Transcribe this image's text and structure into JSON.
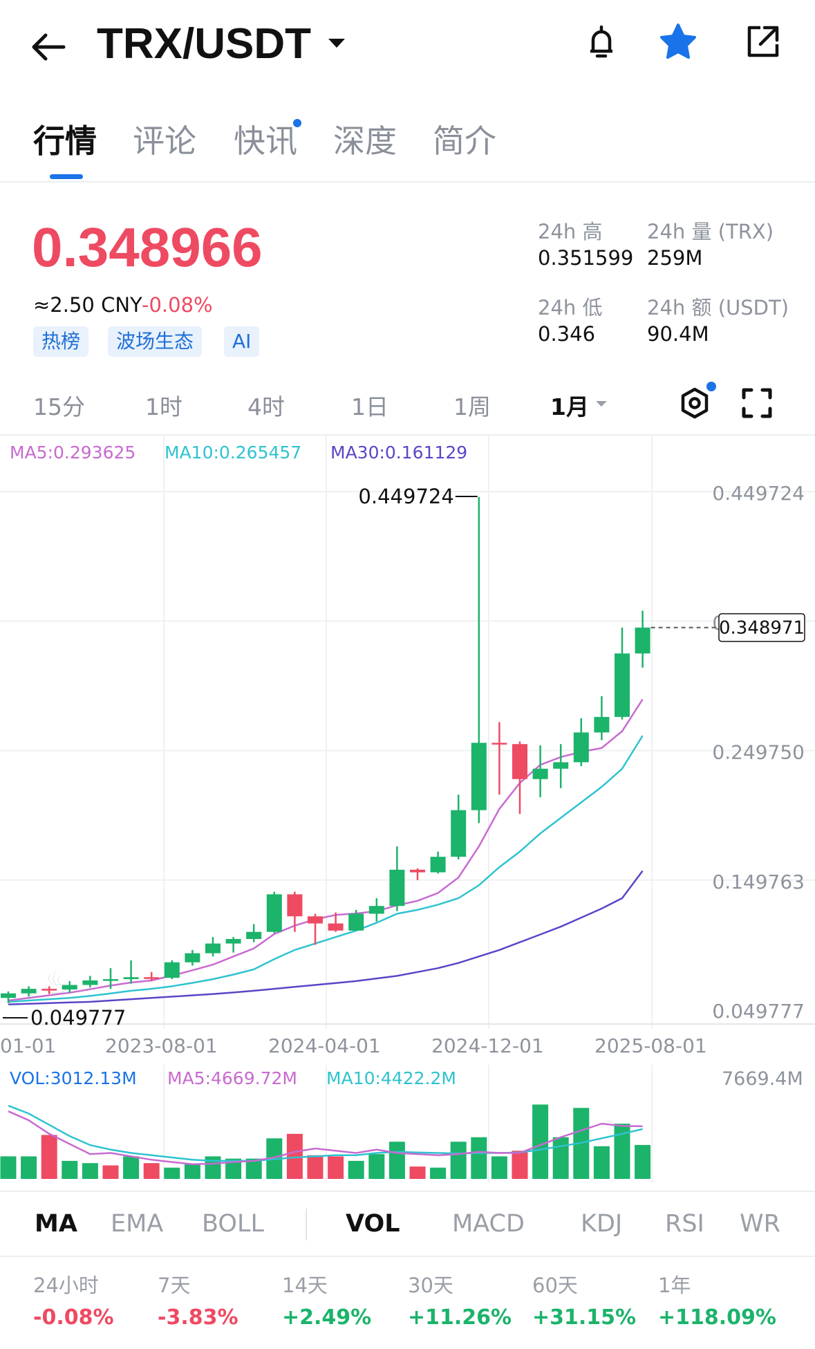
{
  "header": {
    "pair": "TRX/USDT",
    "icons": [
      "back-arrow-icon",
      "dropdown-caret-icon",
      "bell-icon",
      "star-icon",
      "share-icon"
    ]
  },
  "tabs": [
    {
      "label": "行情",
      "active": true
    },
    {
      "label": "评论",
      "active": false
    },
    {
      "label": "快讯",
      "active": false
    },
    {
      "label": "深度",
      "active": false
    },
    {
      "label": "简介",
      "active": false
    }
  ],
  "price": {
    "last": "0.348966",
    "cny": "≈2.50 CNY",
    "change": "-0.08%",
    "color": "#ee4a62"
  },
  "tags": [
    "热榜",
    "波场生态",
    "AI"
  ],
  "stats": {
    "high_label": "24h 高",
    "high": "0.351599",
    "vol_label": "24h 量 (TRX)",
    "vol": "259M",
    "low_label": "24h 低",
    "low": "0.346",
    "amt_label": "24h 额 (USDT)",
    "amt": "90.4M"
  },
  "timeframes": [
    {
      "label": "15分",
      "active": false
    },
    {
      "label": "1时",
      "active": false
    },
    {
      "label": "4时",
      "active": false
    },
    {
      "label": "1日",
      "active": false
    },
    {
      "label": "1周",
      "active": false
    },
    {
      "label": "1月",
      "active": true
    }
  ],
  "ma_legend": {
    "ma5": "MA5:0.293625",
    "ma10": "MA10:0.265457",
    "ma30": "MA30:0.161129"
  },
  "chart": {
    "y_labels": [
      "0.449724",
      "0.349737",
      "0.249750",
      "0.149763",
      "0.049777"
    ],
    "max_label": "0.449724",
    "min_label": "0.049777",
    "current_tag": "0.348971",
    "x_labels": [
      "01-01",
      "2023-08-01",
      "2024-04-01",
      "2024-12-01",
      "2025-08-01"
    ],
    "colors": {
      "up": "#1cb36b",
      "down": "#ee4a62",
      "ma5": "#c86ad0",
      "ma10": "#2ec3d0",
      "ma30": "#5a45c8"
    }
  },
  "chart_data": {
    "type": "candlestick",
    "ylim": [
      0.049777,
      0.449724
    ],
    "x_ticks": [
      "01-01",
      "2023-08-01",
      "2024-04-01",
      "2024-12-01",
      "2025-08-01"
    ],
    "candles": [
      {
        "o": 0.063,
        "h": 0.068,
        "l": 0.059,
        "c": 0.0665
      },
      {
        "o": 0.0665,
        "h": 0.072,
        "l": 0.064,
        "c": 0.07
      },
      {
        "o": 0.07,
        "h": 0.072,
        "l": 0.066,
        "c": 0.0695
      },
      {
        "o": 0.0695,
        "h": 0.076,
        "l": 0.067,
        "c": 0.073
      },
      {
        "o": 0.073,
        "h": 0.08,
        "l": 0.071,
        "c": 0.0765
      },
      {
        "o": 0.0765,
        "h": 0.086,
        "l": 0.07,
        "c": 0.0775
      },
      {
        "o": 0.0775,
        "h": 0.092,
        "l": 0.074,
        "c": 0.079
      },
      {
        "o": 0.079,
        "h": 0.083,
        "l": 0.076,
        "c": 0.0785
      },
      {
        "o": 0.0785,
        "h": 0.092,
        "l": 0.0775,
        "c": 0.0905
      },
      {
        "o": 0.0905,
        "h": 0.1,
        "l": 0.088,
        "c": 0.0975
      },
      {
        "o": 0.0975,
        "h": 0.11,
        "l": 0.095,
        "c": 0.105
      },
      {
        "o": 0.105,
        "h": 0.11,
        "l": 0.098,
        "c": 0.1085
      },
      {
        "o": 0.1085,
        "h": 0.12,
        "l": 0.106,
        "c": 0.114
      },
      {
        "o": 0.114,
        "h": 0.145,
        "l": 0.113,
        "c": 0.143
      },
      {
        "o": 0.143,
        "h": 0.145,
        "l": 0.114,
        "c": 0.126
      },
      {
        "o": 0.126,
        "h": 0.128,
        "l": 0.104,
        "c": 0.1205
      },
      {
        "o": 0.1205,
        "h": 0.129,
        "l": 0.114,
        "c": 0.115
      },
      {
        "o": 0.115,
        "h": 0.131,
        "l": 0.115,
        "c": 0.128
      },
      {
        "o": 0.128,
        "h": 0.14,
        "l": 0.122,
        "c": 0.134
      },
      {
        "o": 0.134,
        "h": 0.18,
        "l": 0.13,
        "c": 0.162
      },
      {
        "o": 0.162,
        "h": 0.163,
        "l": 0.154,
        "c": 0.16
      },
      {
        "o": 0.16,
        "h": 0.176,
        "l": 0.159,
        "c": 0.172
      },
      {
        "o": 0.172,
        "h": 0.22,
        "l": 0.17,
        "c": 0.208
      },
      {
        "o": 0.208,
        "h": 0.4497,
        "l": 0.198,
        "c": 0.26
      },
      {
        "o": 0.26,
        "h": 0.276,
        "l": 0.22,
        "c": 0.259
      },
      {
        "o": 0.259,
        "h": 0.261,
        "l": 0.205,
        "c": 0.232
      },
      {
        "o": 0.232,
        "h": 0.258,
        "l": 0.218,
        "c": 0.24
      },
      {
        "o": 0.24,
        "h": 0.259,
        "l": 0.225,
        "c": 0.245
      },
      {
        "o": 0.245,
        "h": 0.279,
        "l": 0.242,
        "c": 0.268
      },
      {
        "o": 0.268,
        "h": 0.296,
        "l": 0.262,
        "c": 0.28
      },
      {
        "o": 0.28,
        "h": 0.349,
        "l": 0.278,
        "c": 0.329
      },
      {
        "o": 0.329,
        "h": 0.362,
        "l": 0.318,
        "c": 0.349
      }
    ],
    "ma5": [
      0.061,
      0.063,
      0.065,
      0.067,
      0.0697,
      0.0725,
      0.0749,
      0.0765,
      0.0802,
      0.0843,
      0.0887,
      0.095,
      0.1012,
      0.1123,
      0.1188,
      0.1237,
      0.1271,
      0.1282,
      0.13,
      0.1345,
      0.138,
      0.144,
      0.156,
      0.18,
      0.209,
      0.229,
      0.243,
      0.249,
      0.253,
      0.256,
      0.269,
      0.2936
    ],
    "ma10": [
      0.06,
      0.061,
      0.062,
      0.063,
      0.0645,
      0.0665,
      0.0685,
      0.07,
      0.072,
      0.0746,
      0.0775,
      0.081,
      0.085,
      0.093,
      0.1,
      0.105,
      0.11,
      0.115,
      0.121,
      0.128,
      0.131,
      0.135,
      0.14,
      0.15,
      0.164,
      0.176,
      0.19,
      0.202,
      0.214,
      0.226,
      0.24,
      0.2655
    ],
    "ma30": [
      0.058,
      0.0585,
      0.059,
      0.0595,
      0.06,
      0.061,
      0.062,
      0.063,
      0.064,
      0.065,
      0.066,
      0.0672,
      0.0685,
      0.07,
      0.0715,
      0.073,
      0.0745,
      0.076,
      0.078,
      0.08,
      0.083,
      0.086,
      0.09,
      0.095,
      0.1,
      0.106,
      0.112,
      0.118,
      0.125,
      0.132,
      0.14,
      0.1611
    ],
    "volume": {
      "legend": {
        "vol": "VOL:3012.13M",
        "ma5": "MA5:4669.72M",
        "ma10": "MA10:4422.2M"
      },
      "max_label": "7669.4M",
      "ylim": [
        0,
        7669.4
      ],
      "values": [
        2000,
        2000,
        3900,
        1600,
        1400,
        1200,
        2000,
        1400,
        1000,
        1300,
        2000,
        1800,
        1800,
        3600,
        4000,
        2100,
        2000,
        1600,
        2200,
        3300,
        1100,
        1000,
        3300,
        3700,
        2000,
        2500,
        6600,
        3700,
        6300,
        2900,
        4900,
        3012
      ],
      "up": [
        true,
        true,
        false,
        true,
        true,
        false,
        true,
        false,
        true,
        true,
        true,
        true,
        true,
        true,
        false,
        false,
        false,
        true,
        true,
        true,
        false,
        true,
        true,
        true,
        true,
        false,
        true,
        true,
        true,
        true,
        true,
        true
      ],
      "ma5": [
        6000,
        5200,
        4000,
        3100,
        2200,
        2300,
        2000,
        1700,
        1500,
        1300,
        1350,
        1500,
        1600,
        1900,
        2400,
        2700,
        2500,
        2300,
        2600,
        2300,
        2200,
        2100,
        2200,
        2400,
        2300,
        2300,
        3000,
        3700,
        4300,
        4900,
        4700,
        4670
      ],
      "ma10": [
        6500,
        5800,
        4800,
        3800,
        3000,
        2600,
        2300,
        2100,
        1900,
        1700,
        1600,
        1600,
        1600,
        1750,
        1900,
        2000,
        2100,
        2100,
        2300,
        2400,
        2350,
        2300,
        2250,
        2300,
        2300,
        2350,
        2600,
        2900,
        3200,
        3600,
        4000,
        4422
      ]
    }
  },
  "indicators": {
    "main": [
      {
        "label": "MA",
        "active": true
      },
      {
        "label": "EMA",
        "active": false
      },
      {
        "label": "BOLL",
        "active": false
      }
    ],
    "sub": [
      {
        "label": "VOL",
        "active": true
      },
      {
        "label": "MACD",
        "active": false
      },
      {
        "label": "KDJ",
        "active": false
      },
      {
        "label": "RSI",
        "active": false
      },
      {
        "label": "WR",
        "active": false
      }
    ]
  },
  "performance": [
    {
      "label": "24小时",
      "value": "-0.08%",
      "up": false
    },
    {
      "label": "7天",
      "value": "-3.83%",
      "up": false
    },
    {
      "label": "14天",
      "value": "+2.49%",
      "up": true
    },
    {
      "label": "30天",
      "value": "+11.26%",
      "up": true
    },
    {
      "label": "60天",
      "value": "+31.15%",
      "up": true
    },
    {
      "label": "1年",
      "value": "+118.09%",
      "up": true
    }
  ]
}
